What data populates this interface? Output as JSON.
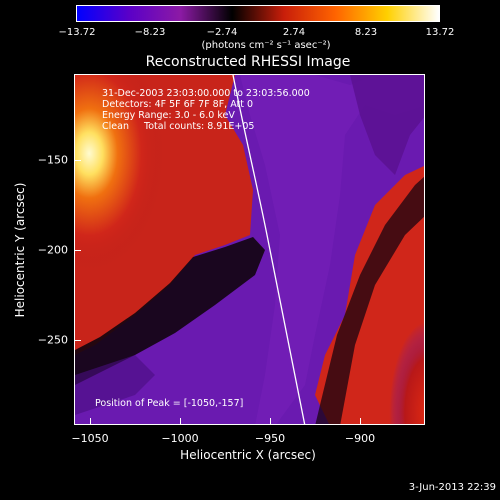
{
  "colorbar": {
    "ticks": [
      "−13.72",
      "−8.23",
      "−2.74",
      "2.74",
      "8.23",
      "13.72"
    ],
    "unit": "(photons cm⁻² s⁻¹ asec⁻²)",
    "colors": [
      "#0000ff",
      "#5a00c8",
      "#8c1aa5",
      "#000000",
      "#c81e0a",
      "#ff6400",
      "#ffd000",
      "#ffffff"
    ]
  },
  "title": "Reconstructed RHESSI Image",
  "info": {
    "time_range": "31-Dec-2003 23:03:00.000 to 23:03:56.000",
    "detectors": "Detectors: 4F 5F 6F 7F 8F, Att 0",
    "energy_range": "Energy Range: 3.0 - 6.0 keV",
    "counts": "Clean     Total counts: 8.91E+05"
  },
  "peak": "Position of Peak = [-1050,-157]",
  "axes": {
    "xlabel": "Heliocentric X (arcsec)",
    "ylabel": "Heliocentric Y (arcsec)",
    "xticks": [
      "−1050",
      "−1000",
      "−950",
      "−900"
    ],
    "yticks": [
      "−150",
      "−200",
      "−250"
    ]
  },
  "stamp": "3-Jun-2013 22:39",
  "colors": {
    "background": "#000000",
    "foreground": "#ffffff",
    "purple": "#6a1ab0",
    "red": "#d0261a",
    "orange": "#f07010",
    "yellow": "#ffe060"
  }
}
